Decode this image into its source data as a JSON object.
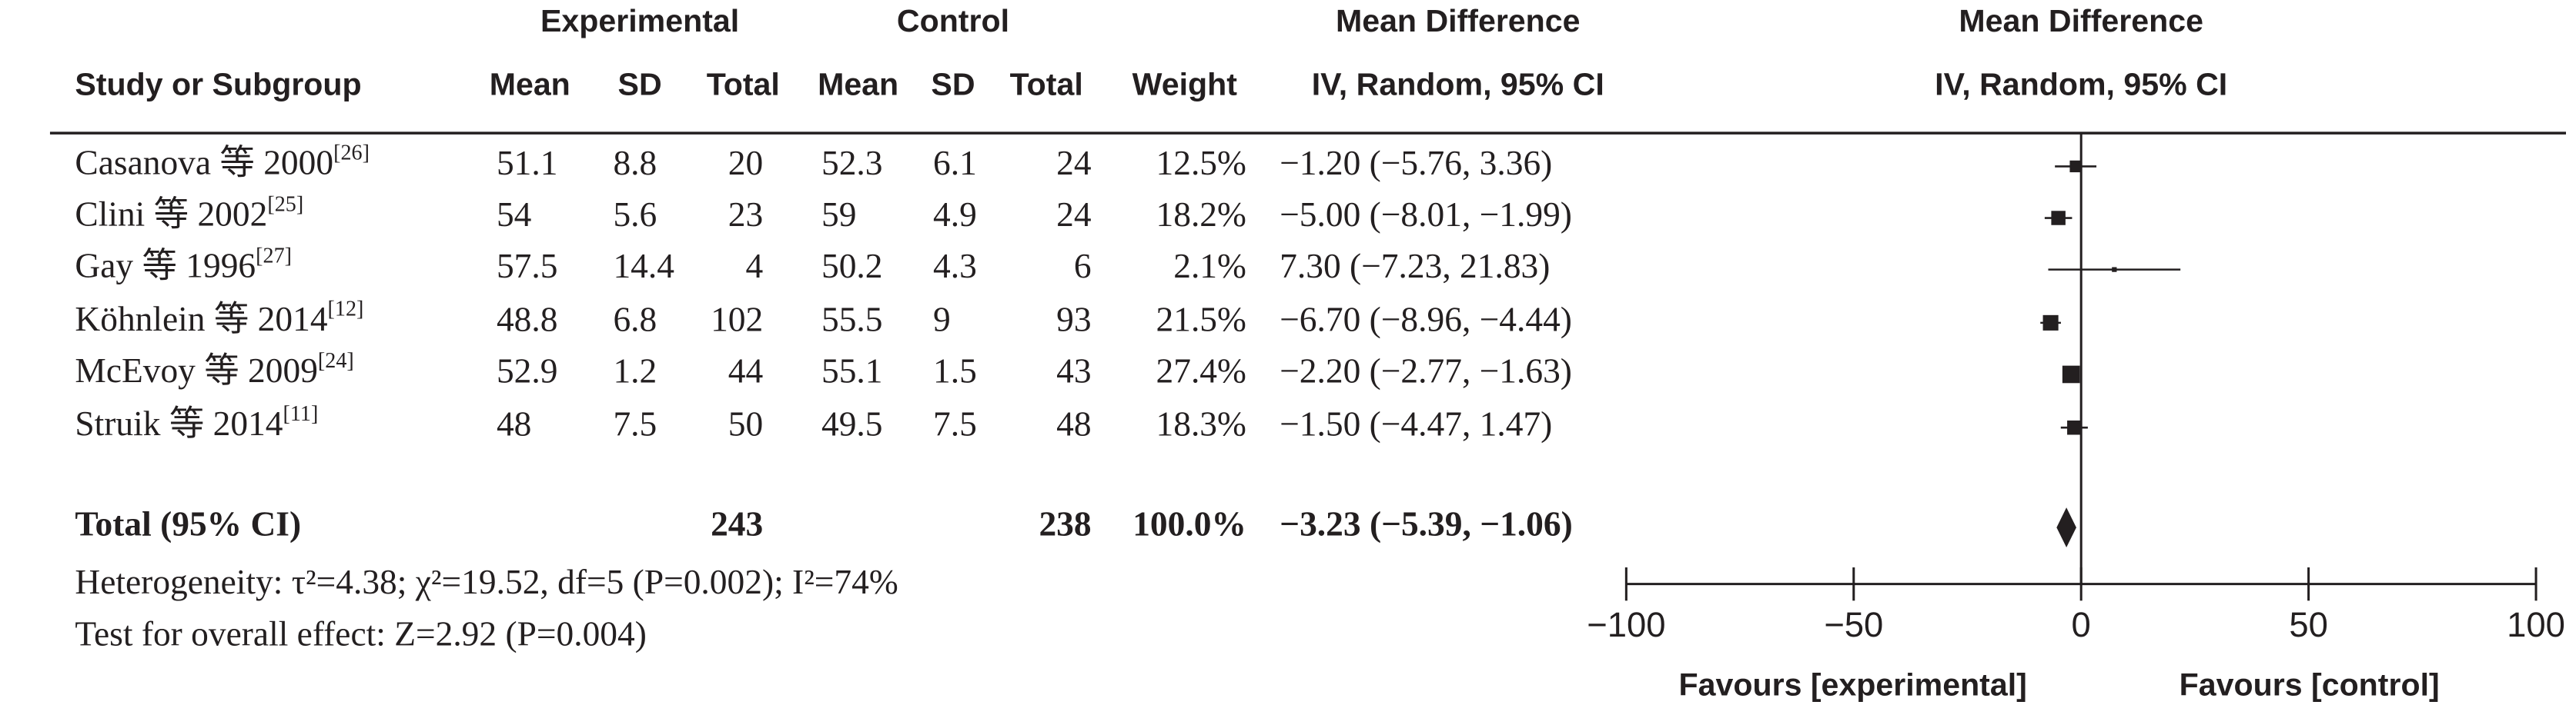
{
  "chart_data": {
    "type": "forest",
    "group_headers": [
      "Experimental",
      "Control",
      "Mean Difference",
      "Mean Difference"
    ],
    "column_headers": [
      "Study or Subgroup",
      "Mean",
      "SD",
      "Total",
      "Mean",
      "SD",
      "Total",
      "Weight",
      "IV, Random, 95% CI",
      "IV, Random, 95% CI"
    ],
    "studies": [
      {
        "name": "Casanova 等 2000",
        "ref": "[26]",
        "exp_mean": 51.1,
        "exp_sd": 8.8,
        "exp_total": 20,
        "ctrl_mean": 52.3,
        "ctrl_sd": 6.1,
        "ctrl_total": 24,
        "weight": 12.5,
        "weight_label": "12.5%",
        "md": -1.2,
        "ci": [
          -5.76,
          3.36
        ],
        "md_label": "−1.20 (−5.76, 3.36)"
      },
      {
        "name": "Clini 等 2002",
        "ref": "[25]",
        "exp_mean": 54,
        "exp_sd": 5.6,
        "exp_total": 23,
        "ctrl_mean": 59,
        "ctrl_sd": 4.9,
        "ctrl_total": 24,
        "weight": 18.2,
        "weight_label": "18.2%",
        "md": -5.0,
        "ci": [
          -8.01,
          -1.99
        ],
        "md_label": "−5.00 (−8.01, −1.99)"
      },
      {
        "name": "Gay 等 1996",
        "ref": "[27]",
        "exp_mean": 57.5,
        "exp_sd": 14.4,
        "exp_total": 4,
        "ctrl_mean": 50.2,
        "ctrl_sd": 4.3,
        "ctrl_total": 6,
        "weight": 2.1,
        "weight_label": "2.1%",
        "md": 7.3,
        "ci": [
          -7.23,
          21.83
        ],
        "md_label": "7.30 (−7.23, 21.83)"
      },
      {
        "name": "Köhnlein 等 2014",
        "ref": "[12]",
        "exp_mean": 48.8,
        "exp_sd": 6.8,
        "exp_total": 102,
        "ctrl_mean": 55.5,
        "ctrl_sd": 9,
        "ctrl_total": 93,
        "weight": 21.5,
        "weight_label": "21.5%",
        "md": -6.7,
        "ci": [
          -8.96,
          -4.44
        ],
        "md_label": "−6.70 (−8.96, −4.44)"
      },
      {
        "name": "McEvoy 等 2009",
        "ref": "[24]",
        "exp_mean": 52.9,
        "exp_sd": 1.2,
        "exp_total": 44,
        "ctrl_mean": 55.1,
        "ctrl_sd": 1.5,
        "ctrl_total": 43,
        "weight": 27.4,
        "weight_label": "27.4%",
        "md": -2.2,
        "ci": [
          -2.77,
          -1.63
        ],
        "md_label": "−2.20 (−2.77, −1.63)"
      },
      {
        "name": "Struik 等 2014",
        "ref": "[11]",
        "exp_mean": 48,
        "exp_sd": 7.5,
        "exp_total": 50,
        "ctrl_mean": 49.5,
        "ctrl_sd": 7.5,
        "ctrl_total": 48,
        "weight": 18.3,
        "weight_label": "18.3%",
        "md": -1.5,
        "ci": [
          -4.47,
          1.47
        ],
        "md_label": "−1.50 (−4.47, 1.47)"
      }
    ],
    "total": {
      "name": "Total (95% CI)",
      "exp_total": 243,
      "ctrl_total": 238,
      "weight": 100,
      "weight_label": "100.0%",
      "md": -3.23,
      "ci": [
        -5.39,
        -1.06
      ],
      "md_label": "−3.23 (−5.39, −1.06)"
    },
    "heterogeneity": "Heterogeneity: τ²=4.38; χ²=19.52, df=5 (P=0.002); I²=74%",
    "overall_effect": "Test for overall effect: Z=2.92 (P=0.004)",
    "xlim": [
      -100,
      100
    ],
    "xticks": [
      {
        "value": -100,
        "label": "−100"
      },
      {
        "value": -50,
        "label": "−50"
      },
      0,
      50,
      100
    ],
    "favours": [
      "Favours [experimental]",
      "Favours [control]"
    ]
  }
}
